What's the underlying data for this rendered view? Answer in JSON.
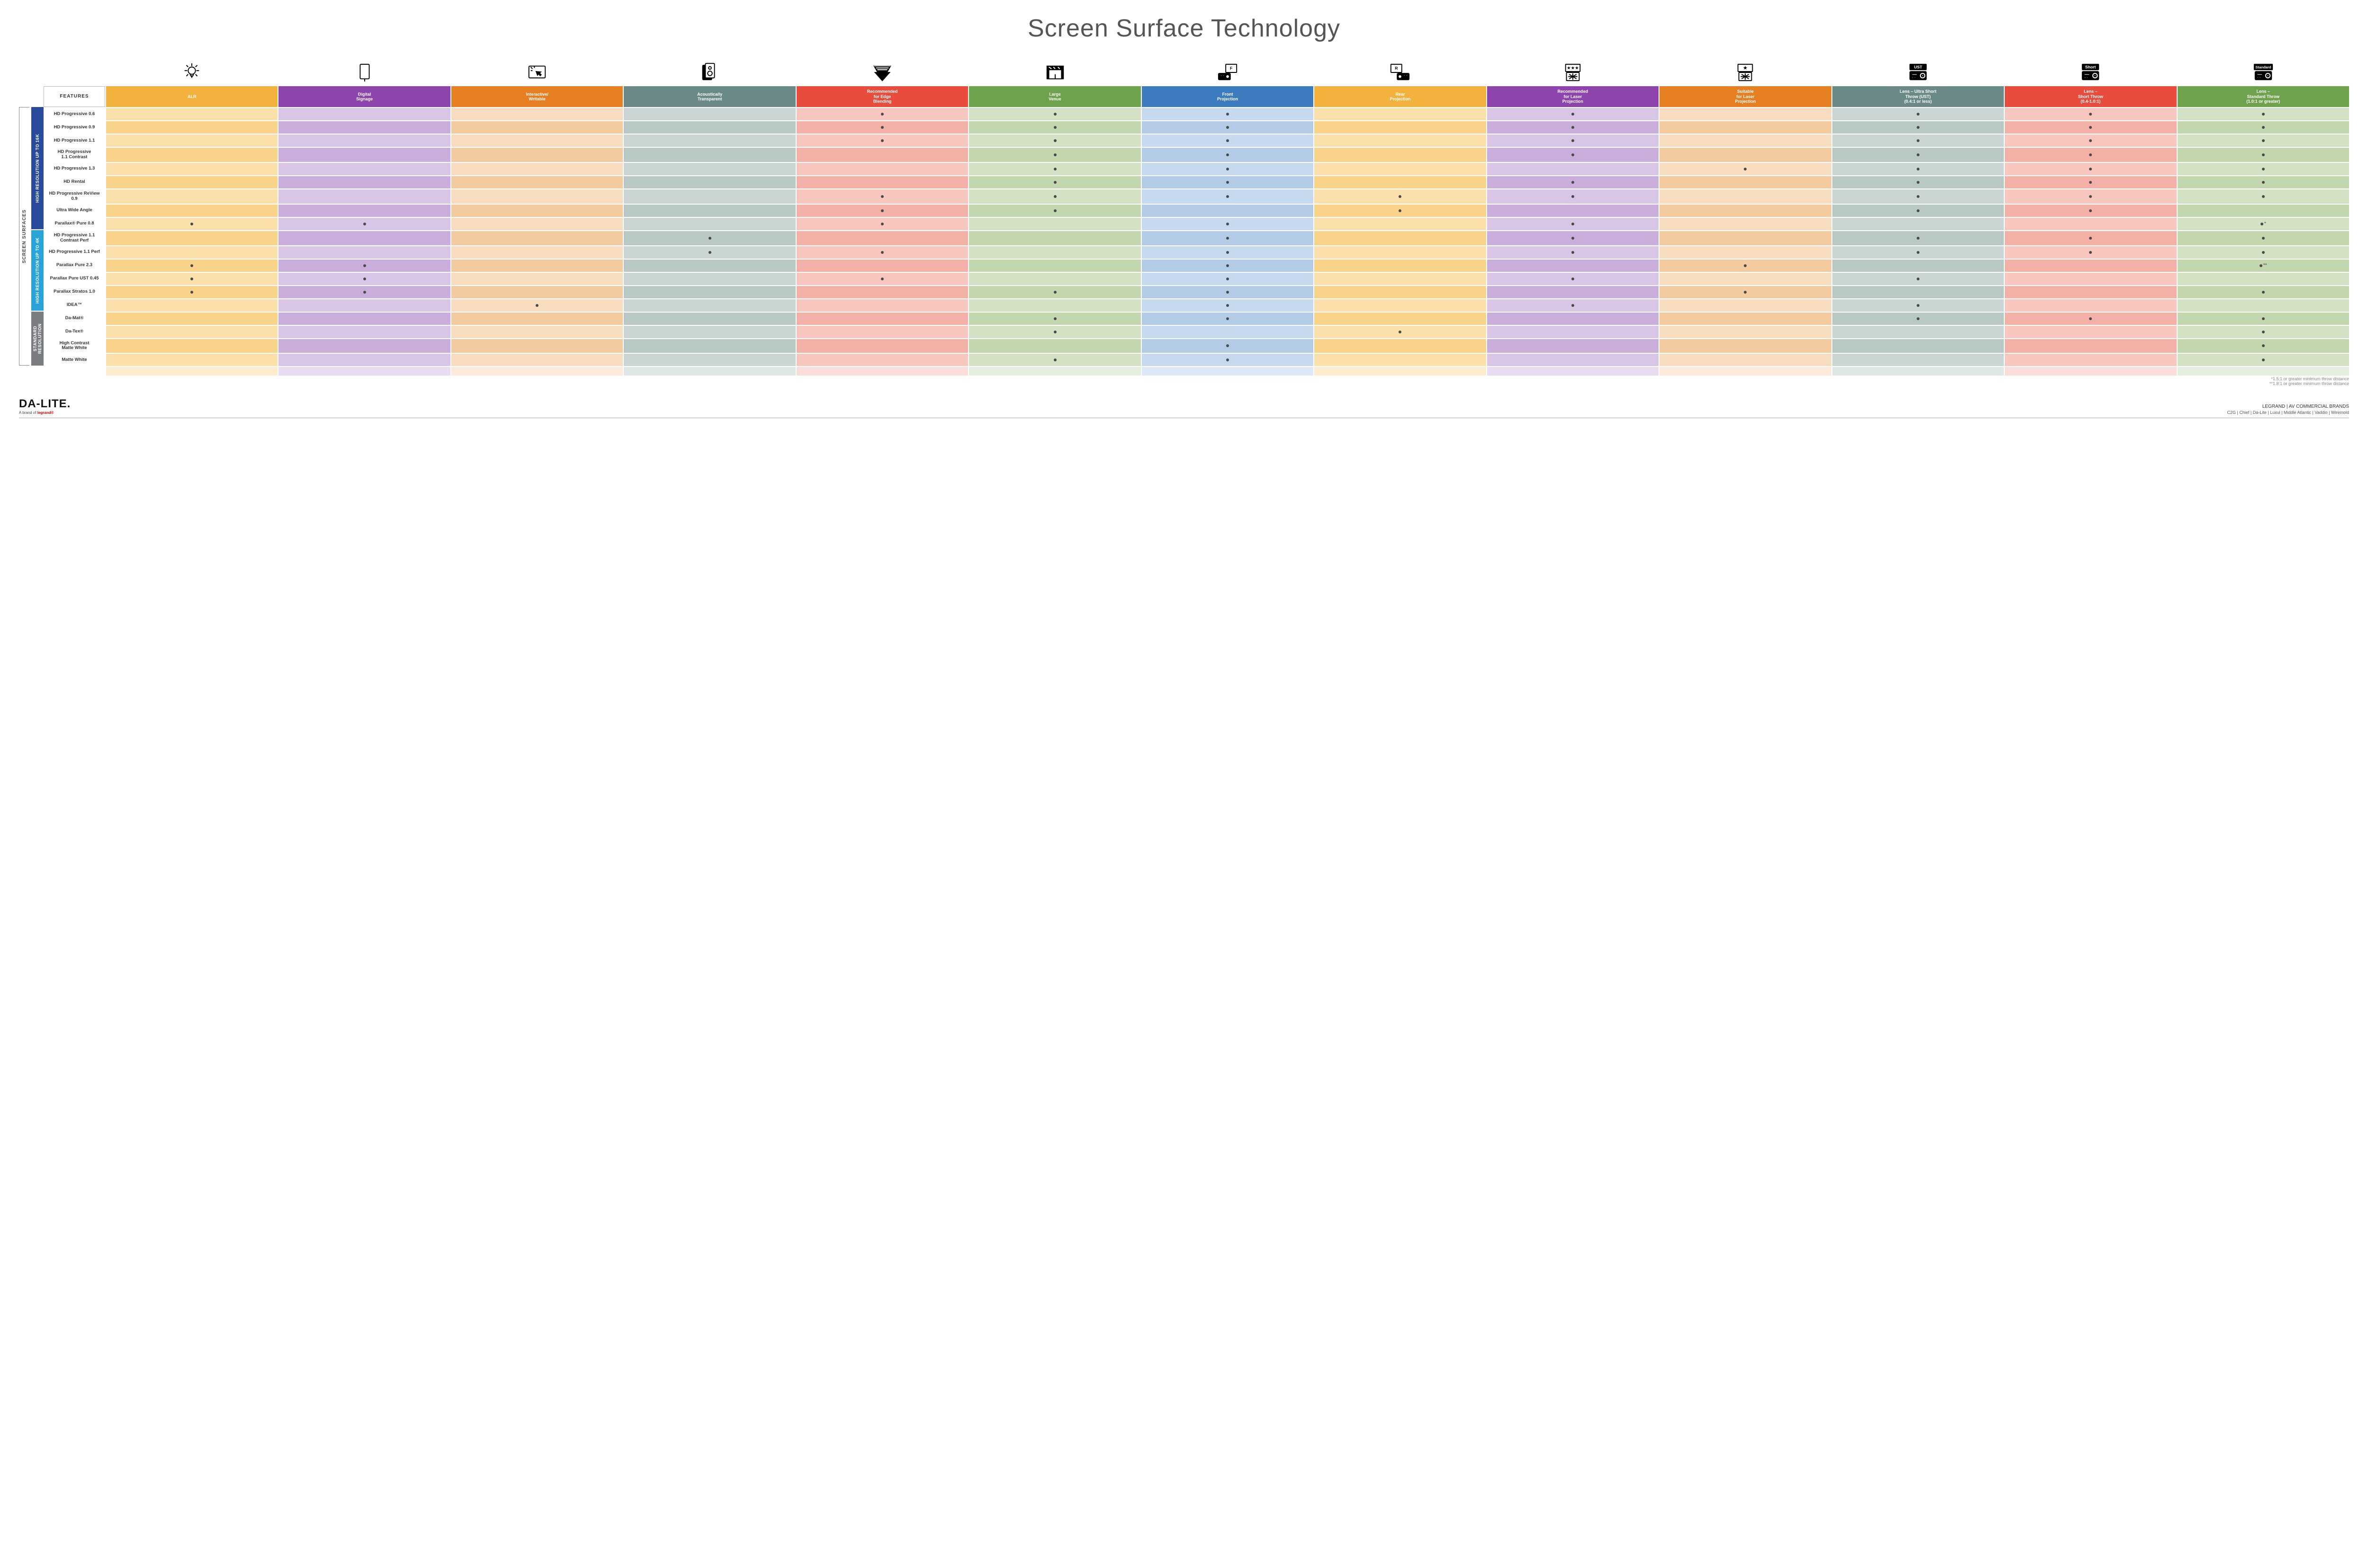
{
  "title": "Screen Surface Technology",
  "features_header": "FEATURES",
  "outer_side_label": "SCREEN SURFACES",
  "columns": [
    {
      "key": "alr",
      "label": "ALR",
      "color": "#f3b23e",
      "tintA": "#fbe0ac",
      "tintB": "#f9d38a"
    },
    {
      "key": "signage",
      "label": "Digital\nSignage",
      "color": "#8e44ad",
      "tintA": "#d9c6e6",
      "tintB": "#c9aedb"
    },
    {
      "key": "interactive",
      "label": "Interactive/\nWritable",
      "color": "#e67e22",
      "tintA": "#f8dcc0",
      "tintB": "#f4cba1"
    },
    {
      "key": "acoustic",
      "label": "Acoustically\nTransparent",
      "color": "#6b8a87",
      "tintA": "#c9d6d4",
      "tintB": "#b7c8c5"
    },
    {
      "key": "edge",
      "label": "Recommended\nfor Edge\nBlending",
      "color": "#e74c3c",
      "tintA": "#f6c6bf",
      "tintB": "#f2b0a6"
    },
    {
      "key": "large",
      "label": "Large\nVenue",
      "color": "#6fa24c",
      "tintA": "#d3e2c4",
      "tintB": "#c3d7af"
    },
    {
      "key": "front",
      "label": "Front\nProjection",
      "color": "#3d7bbf",
      "tintA": "#c7d9ee",
      "tintB": "#b3cbe6"
    },
    {
      "key": "rear",
      "label": "Rear\nProjection",
      "color": "#f3b23e",
      "tintA": "#fbe0ac",
      "tintB": "#f9d38a"
    },
    {
      "key": "laser_rec",
      "label": "Recommended\nfor Laser\nProjection",
      "color": "#8e44ad",
      "tintA": "#d9c6e6",
      "tintB": "#c9aedb"
    },
    {
      "key": "laser_suit",
      "label": "Suitable\nfor Laser\nProjection",
      "color": "#e67e22",
      "tintA": "#f8dcc0",
      "tintB": "#f4cba1"
    },
    {
      "key": "ust",
      "label": "Lens – Ultra Short\nThrow (UST)\n(0.4:1 or less)",
      "color": "#6b8a87",
      "tintA": "#c9d6d4",
      "tintB": "#b7c8c5"
    },
    {
      "key": "short",
      "label": "Lens –\nShort Throw\n(0.4-1.0:1)",
      "color": "#e74c3c",
      "tintA": "#f6c6bf",
      "tintB": "#f2b0a6"
    },
    {
      "key": "std",
      "label": "Lens –\nStandard Throw\n(1.0:1 or greater)",
      "color": "#6fa24c",
      "tintA": "#d3e2c4",
      "tintB": "#c3d7af"
    }
  ],
  "groups": [
    {
      "label": "HIGH RESOLUTION UP TO 16K",
      "color": "#2a4b9b",
      "rows": [
        {
          "name": "HD Progressive 0.6",
          "dots": {
            "edge": "•",
            "large": "•",
            "front": "•",
            "laser_rec": "•",
            "ust": "•",
            "short": "•",
            "std": "•"
          }
        },
        {
          "name": "HD Progressive 0.9",
          "dots": {
            "edge": "•",
            "large": "•",
            "front": "•",
            "laser_rec": "•",
            "ust": "•",
            "short": "•",
            "std": "•"
          }
        },
        {
          "name": "HD Progressive 1.1",
          "dots": {
            "edge": "•",
            "large": "•",
            "front": "•",
            "laser_rec": "•",
            "ust": "•",
            "short": "•",
            "std": "•"
          }
        },
        {
          "name": "HD Progressive\n1.1 Contrast",
          "dots": {
            "large": "•",
            "front": "•",
            "laser_rec": "•",
            "ust": "•",
            "short": "•",
            "std": "•"
          }
        },
        {
          "name": "HD Progressive 1.3",
          "dots": {
            "large": "•",
            "front": "•",
            "laser_suit": "•",
            "ust": "•",
            "short": "•",
            "std": "•"
          }
        },
        {
          "name": "HD Rental",
          "dots": {
            "large": "•",
            "front": "•",
            "laser_rec": "•",
            "ust": "•",
            "short": "•",
            "std": "•"
          }
        },
        {
          "name": "HD Progressive ReView 0.9",
          "dots": {
            "edge": "•",
            "large": "•",
            "front": "•",
            "rear": "•",
            "laser_rec": "•",
            "ust": "•",
            "short": "•",
            "std": "•"
          }
        },
        {
          "name": "Ultra Wide Angle",
          "dots": {
            "edge": "•",
            "large": "•",
            "rear": "•",
            "ust": "•",
            "short": "•"
          }
        },
        {
          "name": "Parallax® Pure 0.8",
          "dots": {
            "alr": "•",
            "signage": "•",
            "edge": "•",
            "front": "•",
            "laser_rec": "•",
            "std": "•*"
          }
        }
      ]
    },
    {
      "label": "HIGH RESOLUTION UP TO 4K",
      "color": "#2aa3d9",
      "rows": [
        {
          "name": "HD Progressive 1.1\nContrast Perf",
          "dots": {
            "acoustic": "•",
            "front": "•",
            "laser_rec": "•",
            "ust": "•",
            "short": "•",
            "std": "•"
          }
        },
        {
          "name": "HD Progressive 1.1 Perf",
          "dots": {
            "acoustic": "•",
            "edge": "•",
            "front": "•",
            "laser_rec": "•",
            "ust": "•",
            "short": "•",
            "std": "•"
          }
        },
        {
          "name": "Parallax Pure 2.3",
          "dots": {
            "alr": "•",
            "signage": "•",
            "front": "•",
            "laser_suit": "•",
            "std": "•**"
          }
        },
        {
          "name": "Parallax Pure UST 0.45",
          "dots": {
            "alr": "•",
            "signage": "•",
            "edge": "•",
            "front": "•",
            "laser_rec": "•",
            "ust": "•"
          }
        },
        {
          "name": "Parallax Stratos 1.0",
          "dots": {
            "alr": "•",
            "signage": "•",
            "large": "•",
            "front": "•",
            "laser_suit": "•",
            "std": "•"
          }
        },
        {
          "name": "IDEA™",
          "dots": {
            "interactive": "•",
            "front": "•",
            "laser_rec": "•",
            "ust": "•"
          }
        }
      ]
    },
    {
      "label": "STANDARD\nRESOLUTION",
      "color": "#7a7d80",
      "rows": [
        {
          "name": "Da-Mat®",
          "dots": {
            "large": "•",
            "front": "•",
            "ust": "•",
            "short": "•",
            "std": "•"
          }
        },
        {
          "name": "Da-Tex®",
          "dots": {
            "large": "•",
            "rear": "•",
            "std": "•"
          }
        },
        {
          "name": "High Contrast\nMatte White",
          "dots": {
            "front": "•",
            "std": "•"
          }
        },
        {
          "name": "Matte White",
          "dots": {
            "large": "•",
            "front": "•",
            "std": "•"
          }
        }
      ]
    }
  ],
  "footnotes": [
    "*1.5:1 or greater minimum throw distance",
    "**1.8:1 or greater minimum throw distance"
  ],
  "footer": {
    "logo": "DA-LITE.",
    "logo_sub_prefix": "A brand of ",
    "logo_sub_brand": "legrand®",
    "right_title": "LEGRAND | AV COMMERCIAL BRANDS",
    "brands": "C2G  |  Chief  |  Da-Lite  |  Luxul  |  Middle Atlantic  |  Vaddio  |  Wiremold"
  },
  "icons": {
    "ust_label": "UST",
    "short_label": "Short",
    "std_label": "Standard",
    "front_label": "F",
    "rear_label": "R"
  }
}
